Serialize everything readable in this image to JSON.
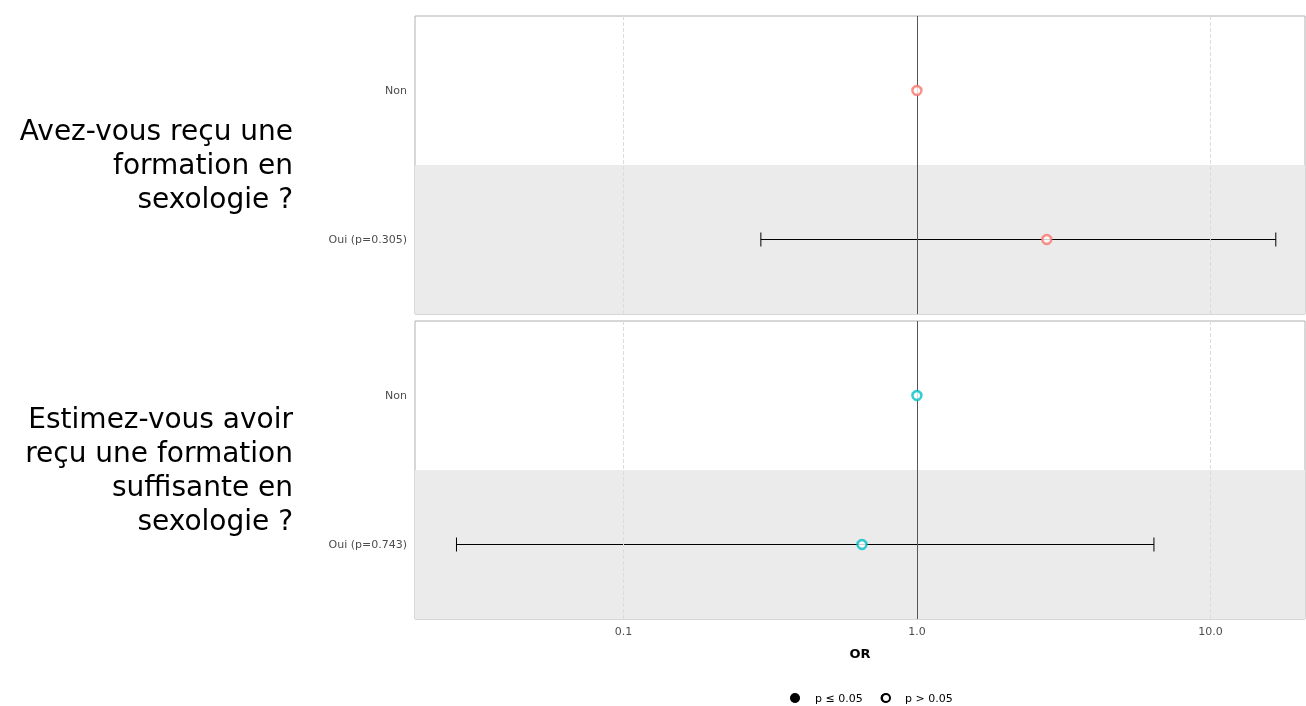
{
  "chart_data": [
    {
      "type": "scatter",
      "orientation": "horizontal",
      "title": "Avez-vous reçu une formation en sexologie ?",
      "categories": [
        "Non",
        "Oui (p=0.305)"
      ],
      "values": [
        1,
        2.77
      ],
      "errors": [
        null,
        [
          0.294,
          16.7
        ]
      ],
      "color": "#f8766d",
      "marker": "circle",
      "log": "x",
      "xlim": [
        0.0195,
        21
      ],
      "xticks": [
        {
          "value": 0.1,
          "label": null
        },
        {
          "value": 1,
          "label": null
        },
        {
          "value": 10,
          "label": null
        }
      ],
      "grid": "x",
      "ref_lines": [
        {
          "axis": "x",
          "value": 1
        }
      ],
      "bands": [
        {
          "axis": "y",
          "from": "Oui (p=0.305)",
          "to": "Oui (p=0.305)",
          "color": "#ebebeb"
        }
      ],
      "tick_labels": "y"
    },
    {
      "type": "scatter",
      "orientation": "horizontal",
      "title": "Estimez-vous avoir reçu une formation suffisante en sexologie ?",
      "categories": [
        "Non",
        "Oui (p=0.743)"
      ],
      "values": [
        1,
        0.65
      ],
      "errors": [
        null,
        [
          0.027,
          6.42
        ]
      ],
      "color": "#00bfc4",
      "marker": "circle",
      "log": "x",
      "xlim": [
        0.0195,
        21
      ],
      "xticks": [
        0.1,
        {
          "value": 1,
          "label": "1.0"
        },
        {
          "value": 10,
          "label": "10.0"
        }
      ],
      "grid": "x",
      "ref_lines": [
        {
          "axis": "x",
          "value": 1
        }
      ],
      "bands": [
        {
          "axis": "y",
          "from": "Oui (p=0.743)",
          "to": "Oui (p=0.743)",
          "color": "#ebebeb"
        }
      ],
      "xlabel": "OR",
      "annotations": [
        "p ≤ 0.05",
        "p > 0.05"
      ]
    }
  ]
}
